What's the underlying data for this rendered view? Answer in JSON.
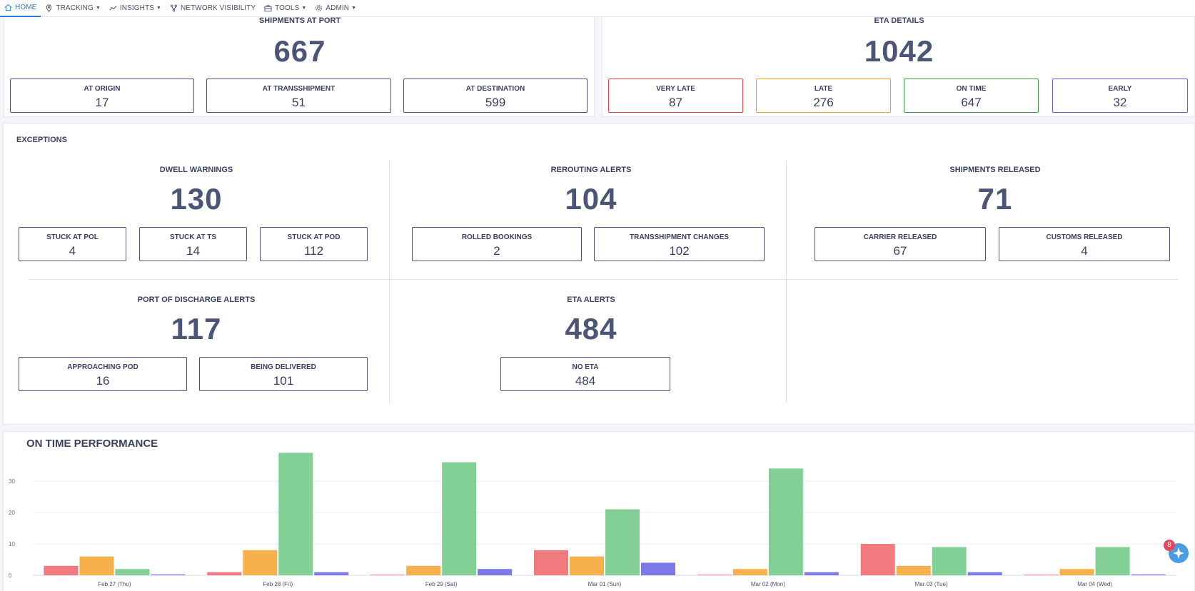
{
  "nav": {
    "items": [
      {
        "label": "HOME",
        "icon": "home-icon",
        "active": true,
        "caret": false
      },
      {
        "label": "TRACKING",
        "icon": "location-pin-icon",
        "active": false,
        "caret": true
      },
      {
        "label": "INSIGHTS",
        "icon": "trend-line-icon",
        "active": false,
        "caret": true
      },
      {
        "label": "NETWORK VISIBILITY",
        "icon": "network-icon",
        "active": false,
        "caret": false
      },
      {
        "label": "TOOLS",
        "icon": "toolbox-icon",
        "active": false,
        "caret": true
      },
      {
        "label": "ADMIN",
        "icon": "gear-icon",
        "active": false,
        "caret": true
      }
    ]
  },
  "shipments_at_port": {
    "title": "SHIPMENTS AT PORT",
    "total": "667",
    "boxes": [
      {
        "label": "AT ORIGIN",
        "value": "17"
      },
      {
        "label": "AT TRANSSHIPMENT",
        "value": "51"
      },
      {
        "label": "AT DESTINATION",
        "value": "599"
      }
    ]
  },
  "eta_details": {
    "title": "ETA DETAILS",
    "total": "1042",
    "boxes": [
      {
        "label": "VERY LATE",
        "value": "87",
        "color": "#e0424a"
      },
      {
        "label": "LATE",
        "value": "276",
        "color": "#f0a030"
      },
      {
        "label": "ON TIME",
        "value": "647",
        "color": "#3a9a4a"
      },
      {
        "label": "EARLY",
        "value": "32",
        "color": "#6a5cd8"
      }
    ]
  },
  "exceptions": {
    "title": "EXCEPTIONS",
    "dwell": {
      "title": "DWELL WARNINGS",
      "total": "130",
      "boxes": [
        {
          "label": "STUCK AT POL",
          "value": "4"
        },
        {
          "label": "STUCK AT TS",
          "value": "14"
        },
        {
          "label": "STUCK AT POD",
          "value": "112"
        }
      ]
    },
    "rerouting": {
      "title": "REROUTING ALERTS",
      "total": "104",
      "boxes": [
        {
          "label": "ROLLED BOOKINGS",
          "value": "2"
        },
        {
          "label": "TRANSSHIPMENT CHANGES",
          "value": "102"
        }
      ]
    },
    "released": {
      "title": "SHIPMENTS RELEASED",
      "total": "71",
      "boxes": [
        {
          "label": "CARRIER RELEASED",
          "value": "67"
        },
        {
          "label": "CUSTOMS RELEASED",
          "value": "4"
        }
      ]
    },
    "pod": {
      "title": "PORT OF DISCHARGE ALERTS",
      "total": "117",
      "boxes": [
        {
          "label": "APPROACHING POD",
          "value": "16"
        },
        {
          "label": "BEING DELIVERED",
          "value": "101"
        }
      ]
    },
    "eta_alerts": {
      "title": "ETA ALERTS",
      "total": "484",
      "boxes": [
        {
          "label": "NO ETA",
          "value": "484"
        }
      ]
    }
  },
  "chart_data": {
    "type": "bar",
    "title": "ON TIME PERFORMANCE",
    "categories": [
      "Feb 27 (Thu)",
      "Feb 28 (Fri)",
      "Feb 29 (Sat)",
      "Mar 01 (Sun)",
      "Mar 02 (Mon)",
      "Mar 03 (Tue)",
      "Mar 04 (Wed)"
    ],
    "yticks": [
      "0",
      "10",
      "20",
      "30"
    ],
    "ylim": [
      0,
      40
    ],
    "grid": true,
    "series": [
      {
        "color": "#f07a7e",
        "values": [
          3,
          1,
          0.2,
          8,
          0.2,
          10,
          0.2
        ]
      },
      {
        "color": "#f6b04c",
        "values": [
          6,
          8,
          3,
          6,
          2,
          3,
          2
        ]
      },
      {
        "color": "#82d095",
        "values": [
          2,
          39,
          36,
          21,
          34,
          9,
          9
        ]
      },
      {
        "color": "#7b78e8",
        "values": [
          0.3,
          1,
          2,
          4,
          1,
          1,
          0.3
        ]
      }
    ]
  },
  "fab": {
    "badge": "8",
    "icon": "assistant-icon"
  }
}
